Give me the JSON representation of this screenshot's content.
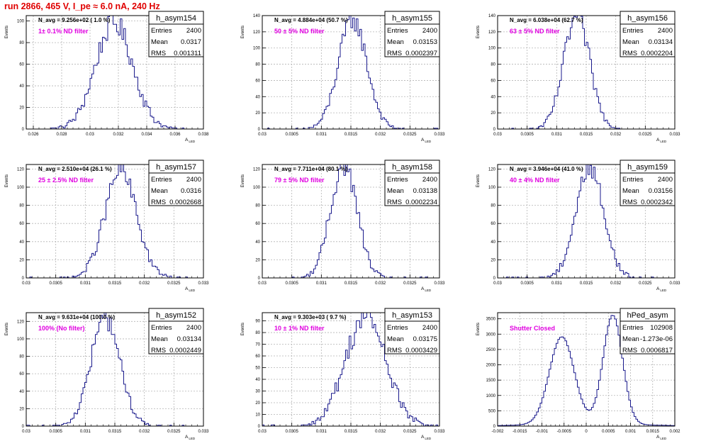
{
  "page": {
    "title": "run 2866,   465 V, I_pe ≈ 6.0 nA, 240 Hz"
  },
  "colors": {
    "title": "#e00000",
    "histogram": "#1a1a8c",
    "annotation": "#e000e0",
    "grid": "#b4b4b4",
    "frame": "#000000"
  },
  "chart_data": [
    {
      "type": "histogram",
      "title": "h_asym154",
      "stats": [
        [
          "Entries",
          "2400"
        ],
        [
          "Mean",
          "0.0317"
        ],
        [
          "RMS",
          "0.001311"
        ]
      ],
      "navg": "N_avg = 9.256e+02 ( 1.0 %)",
      "filter": "1± 0.1% ND filter",
      "ylabel": "Events",
      "xlabel": "A",
      "xlabel_sub": "LED",
      "xlim": [
        0.0255,
        0.038
      ],
      "ylim": [
        0,
        105
      ],
      "xticks": [
        0.026,
        0.028,
        0.03,
        0.032,
        0.034,
        0.036,
        0.038
      ],
      "xtick_labels": [
        "0.026",
        "0.028",
        "0.03",
        "0.032",
        "0.034",
        "0.036",
        "0.038"
      ],
      "yticks": [
        0,
        20,
        40,
        60,
        80,
        100
      ],
      "mean": 0.0317,
      "rms": 0.001311,
      "peak": 98
    },
    {
      "type": "histogram",
      "title": "h_asym155",
      "stats": [
        [
          "Entries",
          "2400"
        ],
        [
          "Mean",
          "0.03153"
        ],
        [
          "RMS",
          "0.0002397"
        ]
      ],
      "navg": "N_avg = 4.884e+04 (50.7 %)",
      "filter": "50 ± 5% ND filter",
      "ylabel": "Events",
      "xlabel": "A",
      "xlabel_sub": "LED",
      "xlim": [
        0.03,
        0.033
      ],
      "ylim": [
        0,
        140
      ],
      "xticks": [
        0.03,
        0.0305,
        0.031,
        0.0315,
        0.032,
        0.0325,
        0.033
      ],
      "xtick_labels": [
        "0.03",
        "0.0305",
        "0.031",
        "0.0315",
        "0.032",
        "0.0325",
        "0.033"
      ],
      "yticks": [
        0,
        20,
        40,
        60,
        80,
        100,
        120,
        140
      ],
      "mean": 0.03153,
      "rms": 0.0002397,
      "peak": 135
    },
    {
      "type": "histogram",
      "title": "h_asym156",
      "stats": [
        [
          "Entries",
          "2400"
        ],
        [
          "Mean",
          "0.03134"
        ],
        [
          "RMS",
          "0.0002204"
        ]
      ],
      "navg": "N_avg = 6.038e+04 (62.7 %)",
      "filter": "63 ± 5% ND filter",
      "ylabel": "Events",
      "xlabel": "A",
      "xlabel_sub": "LED",
      "xlim": [
        0.03,
        0.033
      ],
      "ylim": [
        0,
        140
      ],
      "xticks": [
        0.03,
        0.0305,
        0.031,
        0.0315,
        0.032,
        0.0325,
        0.033
      ],
      "xtick_labels": [
        "0.03",
        "0.0305",
        "0.031",
        "0.0315",
        "0.032",
        "0.0325",
        "0.033"
      ],
      "yticks": [
        0,
        20,
        40,
        60,
        80,
        100,
        120,
        140
      ],
      "mean": 0.03134,
      "rms": 0.0002204,
      "peak": 138
    },
    {
      "type": "histogram",
      "title": "h_asym157",
      "stats": [
        [
          "Entries",
          "2400"
        ],
        [
          "Mean",
          "0.0316"
        ],
        [
          "RMS",
          "0.0002668"
        ]
      ],
      "navg": "N_avg = 2.510e+04 (26.1 %)",
      "filter": "25 ± 2.5% ND filter",
      "ylabel": "Events",
      "xlabel": "A",
      "xlabel_sub": "LED",
      "xlim": [
        0.03,
        0.033
      ],
      "ylim": [
        0,
        125
      ],
      "xticks": [
        0.03,
        0.0305,
        0.031,
        0.0315,
        0.032,
        0.0325,
        0.033
      ],
      "xtick_labels": [
        "0.03",
        "0.0305",
        "0.031",
        "0.0315",
        "0.032",
        "0.0325",
        "0.033"
      ],
      "yticks": [
        0,
        20,
        40,
        60,
        80,
        100,
        120
      ],
      "mean": 0.0316,
      "rms": 0.0002668,
      "peak": 118
    },
    {
      "type": "histogram",
      "title": "h_asym158",
      "stats": [
        [
          "Entries",
          "2400"
        ],
        [
          "Mean",
          "0.03138"
        ],
        [
          "RMS",
          "0.0002234"
        ]
      ],
      "navg": "N_avg = 7.711e+04 (80.1 %)",
      "filter": "79 ± 5% ND filter",
      "ylabel": "Events",
      "xlabel": "A",
      "xlabel_sub": "LED",
      "xlim": [
        0.03,
        0.033
      ],
      "ylim": [
        0,
        125
      ],
      "xticks": [
        0.03,
        0.0305,
        0.031,
        0.0315,
        0.032,
        0.0325,
        0.033
      ],
      "xtick_labels": [
        "0.03",
        "0.0305",
        "0.031",
        "0.0315",
        "0.032",
        "0.0325",
        "0.033"
      ],
      "yticks": [
        0,
        20,
        40,
        60,
        80,
        100,
        120
      ],
      "mean": 0.03138,
      "rms": 0.0002234,
      "peak": 125
    },
    {
      "type": "histogram",
      "title": "h_asym159",
      "stats": [
        [
          "Entries",
          "2400"
        ],
        [
          "Mean",
          "0.03156"
        ],
        [
          "RMS",
          "0.0002342"
        ]
      ],
      "navg": "N_avg = 3.946e+04 (41.0 %)",
      "filter": "40 ± 4% ND filter",
      "ylabel": "Events",
      "xlabel": "A",
      "xlabel_sub": "LED",
      "xlim": [
        0.03,
        0.033
      ],
      "ylim": [
        0,
        125
      ],
      "xticks": [
        0.03,
        0.0305,
        0.031,
        0.0315,
        0.032,
        0.0325,
        0.033
      ],
      "xtick_labels": [
        "0.03",
        "0.0305",
        "0.031",
        "0.0315",
        "0.032",
        "0.0325",
        "0.033"
      ],
      "yticks": [
        0,
        20,
        40,
        60,
        80,
        100,
        120
      ],
      "mean": 0.03156,
      "rms": 0.0002342,
      "peak": 122
    },
    {
      "type": "histogram",
      "title": "h_asym152",
      "stats": [
        [
          "Entries",
          "2400"
        ],
        [
          "Mean",
          "0.03134"
        ],
        [
          "RMS",
          "0.0002449"
        ]
      ],
      "navg": "N_avg = 9.631e+04 (100.0 %)",
      "filter": "100% (No filter)",
      "ylabel": "Events",
      "xlabel": "A",
      "xlabel_sub": "LED",
      "xlim": [
        0.03,
        0.033
      ],
      "ylim": [
        0,
        130
      ],
      "xticks": [
        0.03,
        0.0305,
        0.031,
        0.0315,
        0.032,
        0.0325,
        0.033
      ],
      "xtick_labels": [
        "0.03",
        "0.0305",
        "0.031",
        "0.0315",
        "0.032",
        "0.0325",
        "0.033"
      ],
      "yticks": [
        0,
        20,
        40,
        60,
        80,
        100,
        120
      ],
      "mean": 0.03134,
      "rms": 0.0002449,
      "peak": 124
    },
    {
      "type": "histogram",
      "title": "h_asym153",
      "stats": [
        [
          "Entries",
          "2400"
        ],
        [
          "Mean",
          "0.03175"
        ],
        [
          "RMS",
          "0.0003429"
        ]
      ],
      "navg": "N_avg = 9.303e+03 ( 9.7 %)",
      "filter": "10 ± 1% ND filter",
      "ylabel": "Events",
      "xlabel": "A",
      "xlabel_sub": "LED",
      "xlim": [
        0.03,
        0.033
      ],
      "ylim": [
        0,
        97
      ],
      "xticks": [
        0.03,
        0.0305,
        0.031,
        0.0315,
        0.032,
        0.0325,
        0.033
      ],
      "xtick_labels": [
        "0.03",
        "0.0305",
        "0.031",
        "0.0315",
        "0.032",
        "0.0325",
        "0.033"
      ],
      "yticks": [
        0,
        10,
        20,
        30,
        40,
        50,
        60,
        70,
        80,
        90
      ],
      "mean": 0.03175,
      "rms": 0.0003429,
      "peak": 94
    },
    {
      "type": "histogram",
      "title": "hPed_asym",
      "stats": [
        [
          "Entries",
          "102908"
        ],
        [
          "Mean",
          "-1.273e-06"
        ],
        [
          "RMS",
          "0.0006817"
        ]
      ],
      "navg": "",
      "filter": "Shutter Closed",
      "ylabel": "Events",
      "xlabel": "A",
      "xlabel_sub": "LED",
      "xlim": [
        -0.002,
        0.002
      ],
      "ylim": [
        0,
        3700
      ],
      "xticks": [
        -0.002,
        -0.0015,
        -0.001,
        -0.0005,
        0,
        0.0005,
        0.001,
        0.0015,
        0.002
      ],
      "xtick_labels": [
        "-0.002",
        "-0.0015",
        "-0.001",
        "-0.0005",
        "0",
        "0.0005",
        "0.001",
        "0.0015",
        "0.002"
      ],
      "yticks": [
        0,
        500,
        1000,
        1500,
        2000,
        2500,
        3000,
        3500
      ],
      "bimodal": true,
      "peaks": [
        {
          "x": -0.00055,
          "h": 2850,
          "sigma": 0.00028
        },
        {
          "x": 0.0006,
          "h": 3550,
          "sigma": 0.00022
        }
      ]
    }
  ]
}
